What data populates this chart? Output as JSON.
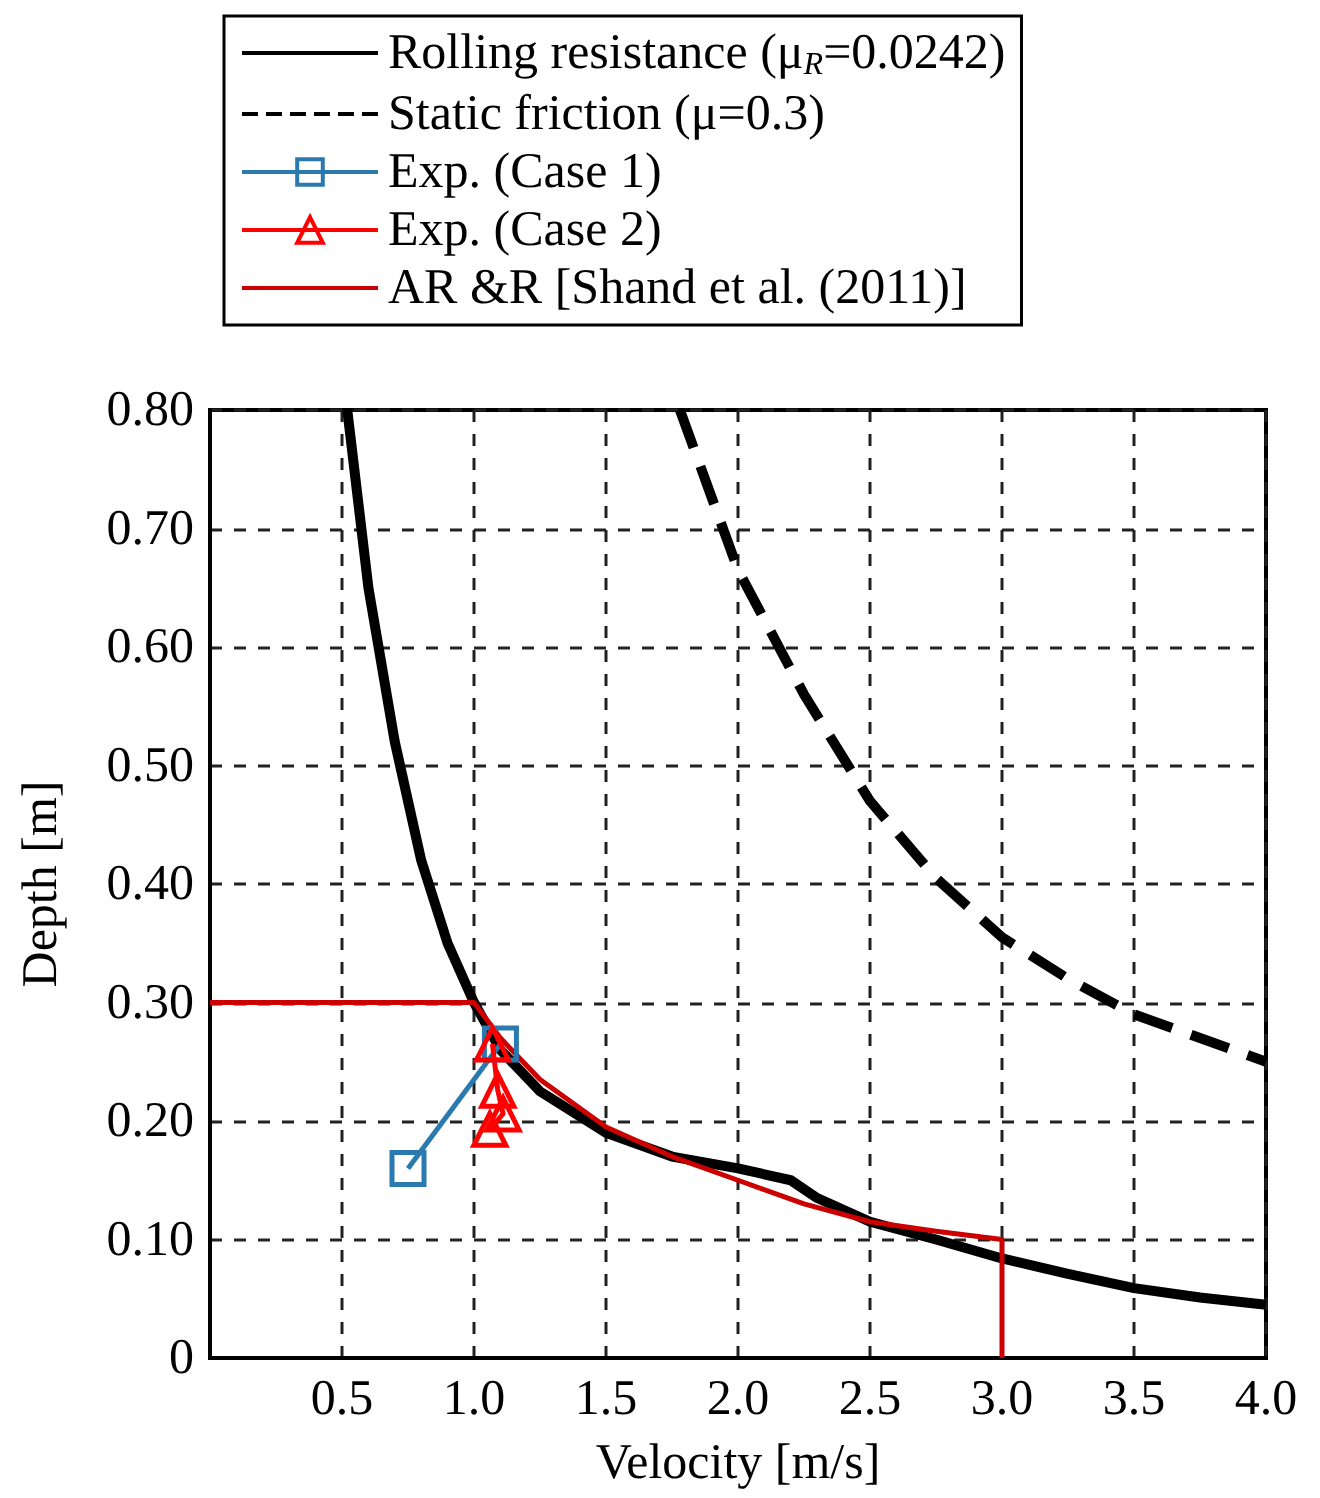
{
  "chart_data": {
    "type": "line",
    "xlabel": "Velocity [m/s]",
    "ylabel": "Depth [m]",
    "xlim": [
      0,
      4
    ],
    "ylim": [
      0,
      0.8
    ],
    "xticks": [
      {
        "value": 0,
        "label": null
      },
      0.5,
      {
        "value": 1,
        "label": "1.0"
      },
      1.5,
      {
        "value": 2,
        "label": "2.0"
      },
      2.5,
      {
        "value": 3,
        "label": "3.0"
      },
      3.5,
      {
        "value": 4,
        "label": "4.0"
      }
    ],
    "yticks": [
      0,
      {
        "value": 0.1,
        "label": "0.10"
      },
      {
        "value": 0.2,
        "label": "0.20"
      },
      {
        "value": 0.3,
        "label": "0.30"
      },
      {
        "value": 0.4,
        "label": "0.40"
      },
      {
        "value": 0.5,
        "label": "0.50"
      },
      {
        "value": 0.6,
        "label": "0.60"
      },
      {
        "value": 0.7,
        "label": "0.70"
      },
      {
        "value": 0.8,
        "label": "0.80"
      }
    ],
    "grid": true,
    "legend": "top",
    "series": [
      {
        "name": "Rolling resistance (μ$_{R}$=0.0242)",
        "color": "#000000",
        "marker": "none",
        "line_style": "solid",
        "x": [
          0.52,
          0.6,
          0.7,
          0.8,
          0.9,
          1.0,
          1.1,
          1.25,
          1.5,
          1.75,
          2.0,
          2.2,
          2.3,
          2.5,
          2.75,
          3.0,
          3.25,
          3.5,
          3.75,
          4.0
        ],
        "values": [
          0.8,
          0.65,
          0.52,
          0.42,
          0.35,
          0.3,
          0.26,
          0.225,
          0.19,
          0.17,
          0.16,
          0.15,
          0.135,
          0.115,
          0.1,
          0.084,
          0.071,
          0.059,
          0.051,
          0.045
        ]
      },
      {
        "name": "Static friction (μ=0.3)",
        "color": "#000000",
        "marker": "none",
        "line_style": "dashed",
        "x": [
          1.78,
          2.0,
          2.25,
          2.5,
          2.75,
          3.0,
          3.25,
          3.5,
          3.75,
          4.0
        ],
        "values": [
          0.8,
          0.665,
          0.56,
          0.47,
          0.405,
          0.355,
          0.32,
          0.29,
          0.27,
          0.25
        ]
      },
      {
        "name": "Exp. (Case 1)",
        "color": "#2a7ab0",
        "marker": "square",
        "line_style": "solid",
        "x": [
          0.75,
          1.1
        ],
        "values": [
          0.16,
          0.265
        ]
      },
      {
        "name": "Exp. (Case 2)",
        "color": "#ff0000",
        "marker": "triangle",
        "line_style": "solid",
        "x": [
          1.07,
          1.09,
          1.11,
          1.06
        ],
        "values": [
          0.265,
          0.226,
          0.206,
          0.193
        ]
      },
      {
        "name": "AR &R [Shand et al. (2011)]",
        "color": "#cc0000",
        "marker": "none",
        "line_style": "solid",
        "x": [
          0,
          1.0,
          1.1,
          1.25,
          1.5,
          1.75,
          2.0,
          2.25,
          2.5,
          2.75,
          3.0,
          3.0
        ],
        "values": [
          0.3,
          0.3,
          0.27,
          0.235,
          0.195,
          0.17,
          0.15,
          0.13,
          0.115,
          0.107,
          0.1,
          0
        ]
      }
    ]
  }
}
